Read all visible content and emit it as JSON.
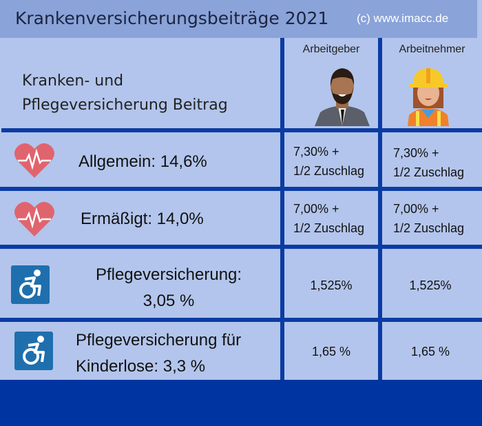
{
  "header": {
    "title": "Krankenversicherungsbeiträge 2021",
    "copyright": "(c) www.imacc.de"
  },
  "columns": {
    "label_line1": "Kranken- und",
    "label_line2": "Pflegeversicherung Beitrag",
    "employer": "Arbeitgeber",
    "employee": "Arbeitnehmer"
  },
  "rows": [
    {
      "label": "Allgemein: 14,6%",
      "icon": "heart-pulse-icon",
      "employer_l1": "7,30% +",
      "employer_l2": "1/2 Zuschlag",
      "employee_l1": "7,30% +",
      "employee_l2": "1/2 Zuschlag"
    },
    {
      "label": "Ermäßigt: 14,0%",
      "icon": "heart-pulse-icon",
      "employer_l1": "7,00% +",
      "employer_l2": "1/2 Zuschlag",
      "employee_l1": "7,00% +",
      "employee_l2": "1/2 Zuschlag"
    },
    {
      "label_l1": "Pflegeversicherung:",
      "label_l2": "3,05 %",
      "icon": "wheelchair-icon",
      "employer": "1,525%",
      "employee": "1,525%"
    },
    {
      "label_l1": "Pflegeversicherung für",
      "label_l2": "Kinderlose: 3,3 %",
      "icon": "wheelchair-icon",
      "employer": "1,65 %",
      "employee": "1,65 %"
    }
  ],
  "colors": {
    "line": "#0b3ca3",
    "background": "#b3c5ec",
    "header": "#8aa3d9",
    "heart": "#e0646e",
    "wheelchair": "#1f6fae"
  }
}
